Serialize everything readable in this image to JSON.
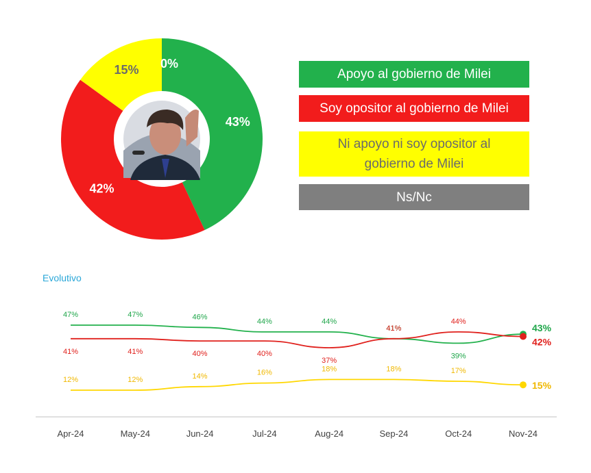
{
  "chart_data": [
    {
      "type": "pie",
      "variant": "donut",
      "slices": [
        {
          "label": "Apoyo al gobierno de Milei",
          "value": 43,
          "display": "43%",
          "color": "#22b14c",
          "text_color": "#ffffff"
        },
        {
          "label": "Soy opositor al gobierno de Milei",
          "value": 42,
          "display": "42%",
          "color": "#f21c1c",
          "text_color": "#ffffff"
        },
        {
          "label": "Ni apoyo ni soy opositor al gobierno de Milei",
          "value": 15,
          "display": "15%",
          "color": "#ffff00",
          "text_color": "#6b6b6b"
        },
        {
          "label": "Ns/Nc",
          "value": 0,
          "display": "0%",
          "color": "#7f7f7f",
          "text_color": "#ffffff"
        }
      ],
      "center_image": "photo-of-javier-milei-speaking",
      "legend_placement": "right"
    },
    {
      "type": "line",
      "title": "Evolutivo",
      "categories": [
        "Apr-24",
        "May-24",
        "Jun-24",
        "Jul-24",
        "Aug-24",
        "Sep-24",
        "Oct-24",
        "Nov-24"
      ],
      "series": [
        {
          "name": "Apoyo al gobierno de Milei",
          "color": "#22b14c",
          "label_color": "#1fa64a",
          "values": [
            47,
            47,
            46,
            44,
            44,
            41,
            39,
            43
          ],
          "labels": [
            "47%",
            "47%",
            "46%",
            "44%",
            "44%",
            "41%",
            "39%",
            "43%"
          ]
        },
        {
          "name": "Soy opositor al gobierno de Milei",
          "color": "#e0201c",
          "label_color": "#e0201c",
          "values": [
            41,
            41,
            40,
            40,
            37,
            41,
            44,
            42
          ],
          "labels": [
            "41%",
            "41%",
            "40%",
            "40%",
            "37%",
            "41%",
            "44%",
            "42%"
          ]
        },
        {
          "name": "Ni apoyo ni soy opositor al gobierno de Milei",
          "color": "#ffd700",
          "label_color": "#f0b800",
          "values": [
            12,
            12,
            14,
            16,
            18,
            18,
            17,
            15
          ],
          "labels": [
            "12%",
            "12%",
            "14%",
            "16%",
            "18%",
            "18%",
            "17%",
            "15%"
          ]
        }
      ],
      "grid": false,
      "legend": "none"
    }
  ]
}
